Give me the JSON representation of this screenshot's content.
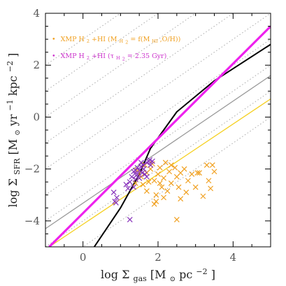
{
  "chart_data": {
    "type": "scatter",
    "xlim": [
      -1,
      5
    ],
    "ylim": [
      -5,
      4
    ],
    "x_ticks": [
      0,
      2,
      4
    ],
    "y_ticks": [
      -4,
      -2,
      0,
      2,
      4
    ],
    "x_tick_labels": [
      "0",
      "2",
      "4"
    ],
    "y_tick_labels": [
      "−4",
      "−2",
      "0",
      "2",
      "4"
    ],
    "xlabel": {
      "prefix": "log Σ",
      "sub": "gas",
      "unit_open": " [M",
      "unit_sub": "⊙",
      "unit_rest": " pc",
      "unit_sup": "−2",
      "unit_close": "]"
    },
    "ylabel": {
      "prefix": "log Σ",
      "sub": "SFR",
      "unit_open": " [M",
      "unit_sub": "⊙",
      "unit_mid": " yr",
      "unit_sup1": "−1",
      "unit_mid2": " kpc",
      "unit_sup2": "−2",
      "unit_close": "]"
    },
    "legend": [
      {
        "marker": "•",
        "color": "#f0a020",
        "text_parts": [
          "XMP H",
          "2",
          "+HI (M",
          "H",
          "2",
          " = f(M",
          "HI",
          ",O/H))"
        ]
      },
      {
        "marker": "•",
        "color": "#cc33cc",
        "text_parts": [
          "XMP H",
          "2",
          "+HI (τ",
          "H",
          "2",
          " = 2.35 Gyr)"
        ]
      }
    ],
    "colors": {
      "orange_points": "#f0a020",
      "purple_points": "#8833bb",
      "magenta_line": "#ee22ee",
      "black_line": "#000000",
      "gray_line": "#999999",
      "yellow_line": "#f5d020",
      "dotted_lines": "#aaaaaa"
    },
    "lines": {
      "dotted_efficiency": {
        "slope": 1,
        "intercepts": [
          -5.0,
          -4.0,
          -3.0,
          -2.0,
          -1.0,
          0.0,
          1.0,
          2.0,
          3.0
        ]
      },
      "magenta": {
        "points": [
          [
            -0.9,
            -5.0
          ],
          [
            5.0,
            3.5
          ]
        ]
      },
      "gray": {
        "points": [
          [
            -1.0,
            -4.3
          ],
          [
            5.0,
            1.6
          ]
        ]
      },
      "yellow": {
        "points": [
          [
            -0.9,
            -5.0
          ],
          [
            5.0,
            0.7
          ]
        ]
      },
      "black": {
        "points": [
          [
            0.3,
            -5.0
          ],
          [
            1.0,
            -3.5
          ],
          [
            1.5,
            -2.2
          ],
          [
            1.8,
            -1.2
          ],
          [
            2.5,
            0.2
          ],
          [
            3.5,
            1.4
          ],
          [
            5.0,
            2.8
          ]
        ]
      }
    },
    "series": [
      {
        "name": "orange",
        "points": [
          [
            1.45,
            -2.05
          ],
          [
            1.55,
            -2.3
          ],
          [
            1.6,
            -2.6
          ],
          [
            1.65,
            -1.85
          ],
          [
            1.7,
            -2.15
          ],
          [
            1.75,
            -2.5
          ],
          [
            1.8,
            -2.0
          ],
          [
            1.85,
            -1.8
          ],
          [
            1.9,
            -2.45
          ],
          [
            1.95,
            -3.0
          ],
          [
            2.0,
            -2.2
          ],
          [
            2.05,
            -1.95
          ],
          [
            2.1,
            -2.7
          ],
          [
            2.15,
            -2.35
          ],
          [
            2.2,
            -1.75
          ],
          [
            2.25,
            -2.85
          ],
          [
            2.3,
            -2.1
          ],
          [
            2.35,
            -2.55
          ],
          [
            2.45,
            -1.95
          ],
          [
            2.5,
            -2.3
          ],
          [
            2.55,
            -2.7
          ],
          [
            2.6,
            -3.15
          ],
          [
            2.7,
            -2.0
          ],
          [
            2.8,
            -2.45
          ],
          [
            2.9,
            -2.2
          ],
          [
            3.0,
            -2.7
          ],
          [
            3.1,
            -2.15
          ],
          [
            3.2,
            -3.05
          ],
          [
            3.35,
            -2.45
          ],
          [
            3.5,
            -2.1
          ],
          [
            1.9,
            -3.35
          ],
          [
            1.95,
            -3.25
          ],
          [
            2.5,
            -3.95
          ],
          [
            1.4,
            -2.55
          ],
          [
            1.55,
            -2.1
          ],
          [
            2.05,
            -2.55
          ],
          [
            2.35,
            -1.85
          ],
          [
            2.75,
            -2.9
          ],
          [
            3.3,
            -1.85
          ],
          [
            3.4,
            -2.75
          ],
          [
            3.45,
            -1.85
          ],
          [
            1.7,
            -2.85
          ],
          [
            2.15,
            -3.1
          ],
          [
            2.6,
            -2.15
          ],
          [
            3.05,
            -2.15
          ]
        ]
      },
      {
        "name": "purple",
        "points": [
          [
            0.82,
            -2.9
          ],
          [
            0.85,
            -3.25
          ],
          [
            0.9,
            -3.1
          ],
          [
            0.88,
            -3.3
          ],
          [
            1.15,
            -2.6
          ],
          [
            1.2,
            -2.75
          ],
          [
            1.25,
            -3.95
          ],
          [
            1.3,
            -2.3
          ],
          [
            1.35,
            -2.1
          ],
          [
            1.4,
            -2.05
          ],
          [
            1.42,
            -2.25
          ],
          [
            1.45,
            -1.95
          ],
          [
            1.5,
            -2.05
          ],
          [
            1.55,
            -1.9
          ],
          [
            1.58,
            -2.15
          ],
          [
            1.62,
            -2.0
          ],
          [
            1.65,
            -2.2
          ],
          [
            1.7,
            -1.75
          ],
          [
            1.75,
            -1.7
          ],
          [
            1.8,
            -1.85
          ],
          [
            1.85,
            -1.7
          ],
          [
            1.6,
            -1.85
          ],
          [
            1.5,
            -2.35
          ],
          [
            1.35,
            -2.7
          ],
          [
            1.7,
            -2.3
          ],
          [
            1.55,
            -1.75
          ],
          [
            1.45,
            -2.2
          ],
          [
            1.25,
            -2.5
          ],
          [
            1.78,
            -1.65
          ],
          [
            1.4,
            -2.4
          ]
        ]
      }
    ]
  }
}
